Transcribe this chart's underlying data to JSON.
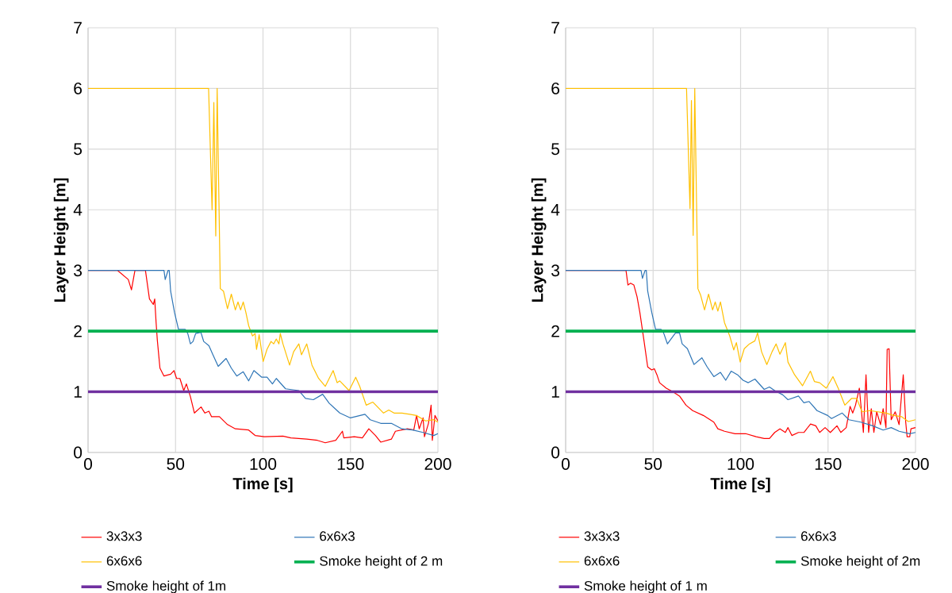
{
  "chart_data": [
    {
      "type": "line",
      "xlabel": "Time [s]",
      "ylabel": "Layer Height [m]",
      "xlim": [
        0,
        200
      ],
      "xticks": [
        0,
        50,
        100,
        150,
        200
      ],
      "ylim": [
        0,
        7
      ],
      "yticks": [
        0,
        1,
        2,
        3,
        4,
        5,
        6,
        7
      ],
      "grid": true,
      "legend": "bottom",
      "marker": "none",
      "line_style": "solid",
      "series": [
        {
          "name": "3x3x3",
          "color": "#ff0000",
          "x": [
            0,
            16.9,
            23,
            24.8,
            26.8,
            32.8,
            35.1,
            37.3,
            38.1,
            38.9,
            39.6,
            41.1,
            43.4,
            47.2,
            49.1,
            50.6,
            52.5,
            54.7,
            56.2,
            58.5,
            60.8,
            64.6,
            66.8,
            69.1,
            70.6,
            75.1,
            79.7,
            84.2,
            91.8,
            95.5,
            100.8,
            111.4,
            115.9,
            125,
            131.1,
            135.6,
            141.6,
            145.4,
            146.2,
            152.2,
            156.8,
            160.5,
            164.3,
            167.3,
            173.4,
            175.7,
            182.5,
            186.2,
            187.8,
            189.3,
            191.5,
            192.3,
            194.6,
            196.1,
            196.8,
            198.3,
            200
          ],
          "values": [
            3,
            3,
            2.85,
            2.68,
            3,
            3,
            2.53,
            2.44,
            2.53,
            2.14,
            1.85,
            1.39,
            1.26,
            1.29,
            1.35,
            1.22,
            1.22,
            1.02,
            1.13,
            0.92,
            0.65,
            0.75,
            0.65,
            0.68,
            0.59,
            0.59,
            0.46,
            0.39,
            0.37,
            0.28,
            0.26,
            0.27,
            0.24,
            0.22,
            0.2,
            0.16,
            0.2,
            0.35,
            0.24,
            0.26,
            0.24,
            0.39,
            0.28,
            0.17,
            0.22,
            0.35,
            0.39,
            0.37,
            0.61,
            0.39,
            0.57,
            0.26,
            0.48,
            0.78,
            0.2,
            0.61,
            0.52
          ]
        },
        {
          "name": "6x6x3",
          "color": "#2e75b6",
          "x": [
            0,
            43.4,
            44.1,
            45.7,
            46.4,
            47.2,
            49.4,
            51.7,
            55.5,
            57,
            58.5,
            60,
            61.5,
            64.5,
            66.1,
            69.1,
            71.4,
            74.4,
            78.9,
            81.9,
            85,
            88.7,
            91.8,
            94.8,
            99.3,
            102.3,
            105.4,
            107.6,
            112.9,
            120.5,
            124.3,
            128.8,
            134.1,
            137.9,
            143.9,
            150,
            158.3,
            161.3,
            167.3,
            173.4,
            179.4,
            185.5,
            191.5,
            197.6,
            200
          ],
          "values": [
            3,
            3,
            2.85,
            3,
            3,
            2.66,
            2.31,
            2.03,
            2.03,
            1.96,
            1.79,
            1.83,
            1.96,
            1.98,
            1.83,
            1.76,
            1.61,
            1.42,
            1.55,
            1.39,
            1.26,
            1.33,
            1.18,
            1.35,
            1.24,
            1.24,
            1.13,
            1.22,
            1.05,
            1.02,
            0.89,
            0.87,
            0.96,
            0.81,
            0.65,
            0.57,
            0.63,
            0.54,
            0.48,
            0.48,
            0.39,
            0.37,
            0.33,
            0.28,
            0.31
          ]
        },
        {
          "name": "6x6x6",
          "color": "#ffc000",
          "x": [
            0,
            68.9,
            70.9,
            71.9,
            73,
            73.8,
            75.6,
            77.4,
            79.7,
            81.9,
            84.2,
            85.7,
            87.2,
            88.7,
            90.2,
            91.8,
            94,
            95.5,
            96.3,
            97.8,
            100.1,
            102.3,
            104.6,
            106.1,
            107.6,
            109.1,
            109.9,
            111.4,
            115.2,
            117.5,
            120.5,
            122,
            125,
            128,
            131.8,
            135.6,
            140.1,
            142.4,
            143.9,
            149.2,
            153,
            155.3,
            159,
            162.8,
            168.9,
            171.9,
            174.9,
            179.4,
            183.9,
            187.7,
            193,
            197.6,
            200
          ],
          "values": [
            6,
            6,
            4.0,
            5.77,
            3.57,
            6,
            2.7,
            2.66,
            2.37,
            2.61,
            2.35,
            2.48,
            2.35,
            2.48,
            2.31,
            2.09,
            1.92,
            1.96,
            1.7,
            1.94,
            1.5,
            1.7,
            1.83,
            1.79,
            1.87,
            1.79,
            1.96,
            1.79,
            1.44,
            1.66,
            1.79,
            1.61,
            1.79,
            1.44,
            1.22,
            1.09,
            1.35,
            1.15,
            1.18,
            1.02,
            1.24,
            1.09,
            0.78,
            0.83,
            0.65,
            0.7,
            0.65,
            0.65,
            0.63,
            0.61,
            0.52,
            0.54,
            0.5
          ]
        },
        {
          "name": "Smoke height of 2 m",
          "color": "#00b050",
          "x": [
            0,
            200
          ],
          "values": [
            2,
            2
          ]
        },
        {
          "name": "Smoke height of 1m",
          "color": "#7030a0",
          "x": [
            0,
            200
          ],
          "values": [
            1,
            1
          ]
        }
      ]
    },
    {
      "type": "line",
      "xlabel": "Time [s]",
      "ylabel": "Layer Height [m]",
      "xlim": [
        0,
        200
      ],
      "xticks": [
        0,
        50,
        100,
        150,
        200
      ],
      "ylim": [
        0,
        7
      ],
      "yticks": [
        0,
        1,
        2,
        3,
        4,
        5,
        6,
        7
      ],
      "grid": true,
      "legend": "bottom",
      "marker": "none",
      "line_style": "solid",
      "series": [
        {
          "name": "3x3x3",
          "color": "#ff0000",
          "x": [
            0,
            34.5,
            35.6,
            37.1,
            39,
            40.8,
            42.4,
            44.6,
            46.9,
            49.2,
            50.7,
            52.2,
            53.7,
            57.5,
            61.3,
            65.1,
            68.8,
            72.6,
            78.7,
            84.7,
            87,
            90.8,
            96.8,
            102.9,
            108.9,
            113.5,
            116.5,
            119.5,
            122.5,
            125.6,
            127.1,
            129.3,
            133.1,
            136.2,
            140,
            143,
            145.2,
            148.3,
            151.3,
            155.1,
            157.3,
            160.4,
            162.6,
            164.1,
            165.7,
            167.9,
            170.2,
            171.7,
            173.2,
            174.7,
            176.2,
            177.8,
            180,
            181.5,
            183.1,
            183.8,
            184.9,
            186.1,
            188.4,
            190.6,
            193,
            194.4,
            195.2,
            196.7,
            197.4,
            200
          ],
          "values": [
            3,
            3,
            2.76,
            2.79,
            2.76,
            2.57,
            2.31,
            1.88,
            1.41,
            1.36,
            1.38,
            1.28,
            1.15,
            1.06,
            1.0,
            0.93,
            0.78,
            0.69,
            0.61,
            0.5,
            0.39,
            0.35,
            0.31,
            0.31,
            0.26,
            0.23,
            0.23,
            0.33,
            0.39,
            0.33,
            0.41,
            0.28,
            0.33,
            0.33,
            0.47,
            0.44,
            0.33,
            0.41,
            0.33,
            0.44,
            0.33,
            0.41,
            0.76,
            0.65,
            0.78,
            1.06,
            0.33,
            1.28,
            0.33,
            0.72,
            0.33,
            0.67,
            0.46,
            0.72,
            0.41,
            1.7,
            1.71,
            0.54,
            0.67,
            0.46,
            1.28,
            0.5,
            0.26,
            0.26,
            0.39,
            0.41
          ]
        },
        {
          "name": "6x6x3",
          "color": "#2e75b6",
          "x": [
            0,
            43.1,
            43.9,
            45.4,
            46.1,
            46.9,
            49.2,
            51.4,
            54.5,
            56,
            58.2,
            60.5,
            62.8,
            65.1,
            66.6,
            69.6,
            73.4,
            77.9,
            80.9,
            84.7,
            88.5,
            91.5,
            94.6,
            98.3,
            101.4,
            104.4,
            108.2,
            113.5,
            116.5,
            119.5,
            124.1,
            127.1,
            133.1,
            136.2,
            139.2,
            143.7,
            149.8,
            152,
            158.1,
            161.9,
            168.7,
            175.5,
            181.5,
            186.1,
            190.6,
            196.7,
            200
          ],
          "values": [
            3,
            3,
            2.87,
            3,
            3,
            2.66,
            2.31,
            2.03,
            2.03,
            1.97,
            1.79,
            1.88,
            1.97,
            1.97,
            1.79,
            1.71,
            1.45,
            1.56,
            1.41,
            1.25,
            1.32,
            1.19,
            1.34,
            1.28,
            1.19,
            1.15,
            1.21,
            1.04,
            1.08,
            1.02,
            0.95,
            0.87,
            0.93,
            0.82,
            0.84,
            0.69,
            0.61,
            0.56,
            0.65,
            0.54,
            0.5,
            0.44,
            0.37,
            0.41,
            0.35,
            0.31,
            0.33
          ]
        },
        {
          "name": "6x6x6",
          "color": "#ffc000",
          "x": [
            0,
            69.1,
            71.1,
            71.9,
            72.9,
            73.8,
            75.6,
            77.2,
            79.4,
            81.7,
            84,
            85.5,
            87,
            88.5,
            90.8,
            93.8,
            96.1,
            97.6,
            99.8,
            102.1,
            105.1,
            108.2,
            109.7,
            112,
            115,
            118,
            120.3,
            122.5,
            125.6,
            127.1,
            130.9,
            135.4,
            139.9,
            142.2,
            145.2,
            149,
            152.8,
            155.8,
            159.6,
            163.4,
            166.4,
            169.4,
            173.9,
            178.5,
            183.1,
            187.6,
            192.1,
            195.9,
            200
          ],
          "values": [
            6,
            6,
            4.02,
            5.8,
            3.58,
            6,
            2.7,
            2.59,
            2.35,
            2.61,
            2.35,
            2.48,
            2.33,
            2.48,
            2.14,
            1.92,
            1.69,
            1.81,
            1.49,
            1.71,
            1.79,
            1.84,
            1.97,
            1.66,
            1.45,
            1.66,
            1.79,
            1.62,
            1.81,
            1.49,
            1.28,
            1.1,
            1.34,
            1.17,
            1.15,
            1.06,
            1.25,
            1.06,
            0.78,
            0.89,
            0.89,
            0.67,
            0.69,
            0.67,
            0.65,
            0.61,
            0.59,
            0.51,
            0.54
          ]
        },
        {
          "name": "Smoke height of 2m",
          "color": "#00b050",
          "x": [
            0,
            200
          ],
          "values": [
            2,
            2
          ]
        },
        {
          "name": "Smoke height of 1 m",
          "color": "#7030a0",
          "x": [
            0,
            200
          ],
          "values": [
            1,
            1
          ]
        }
      ]
    }
  ]
}
